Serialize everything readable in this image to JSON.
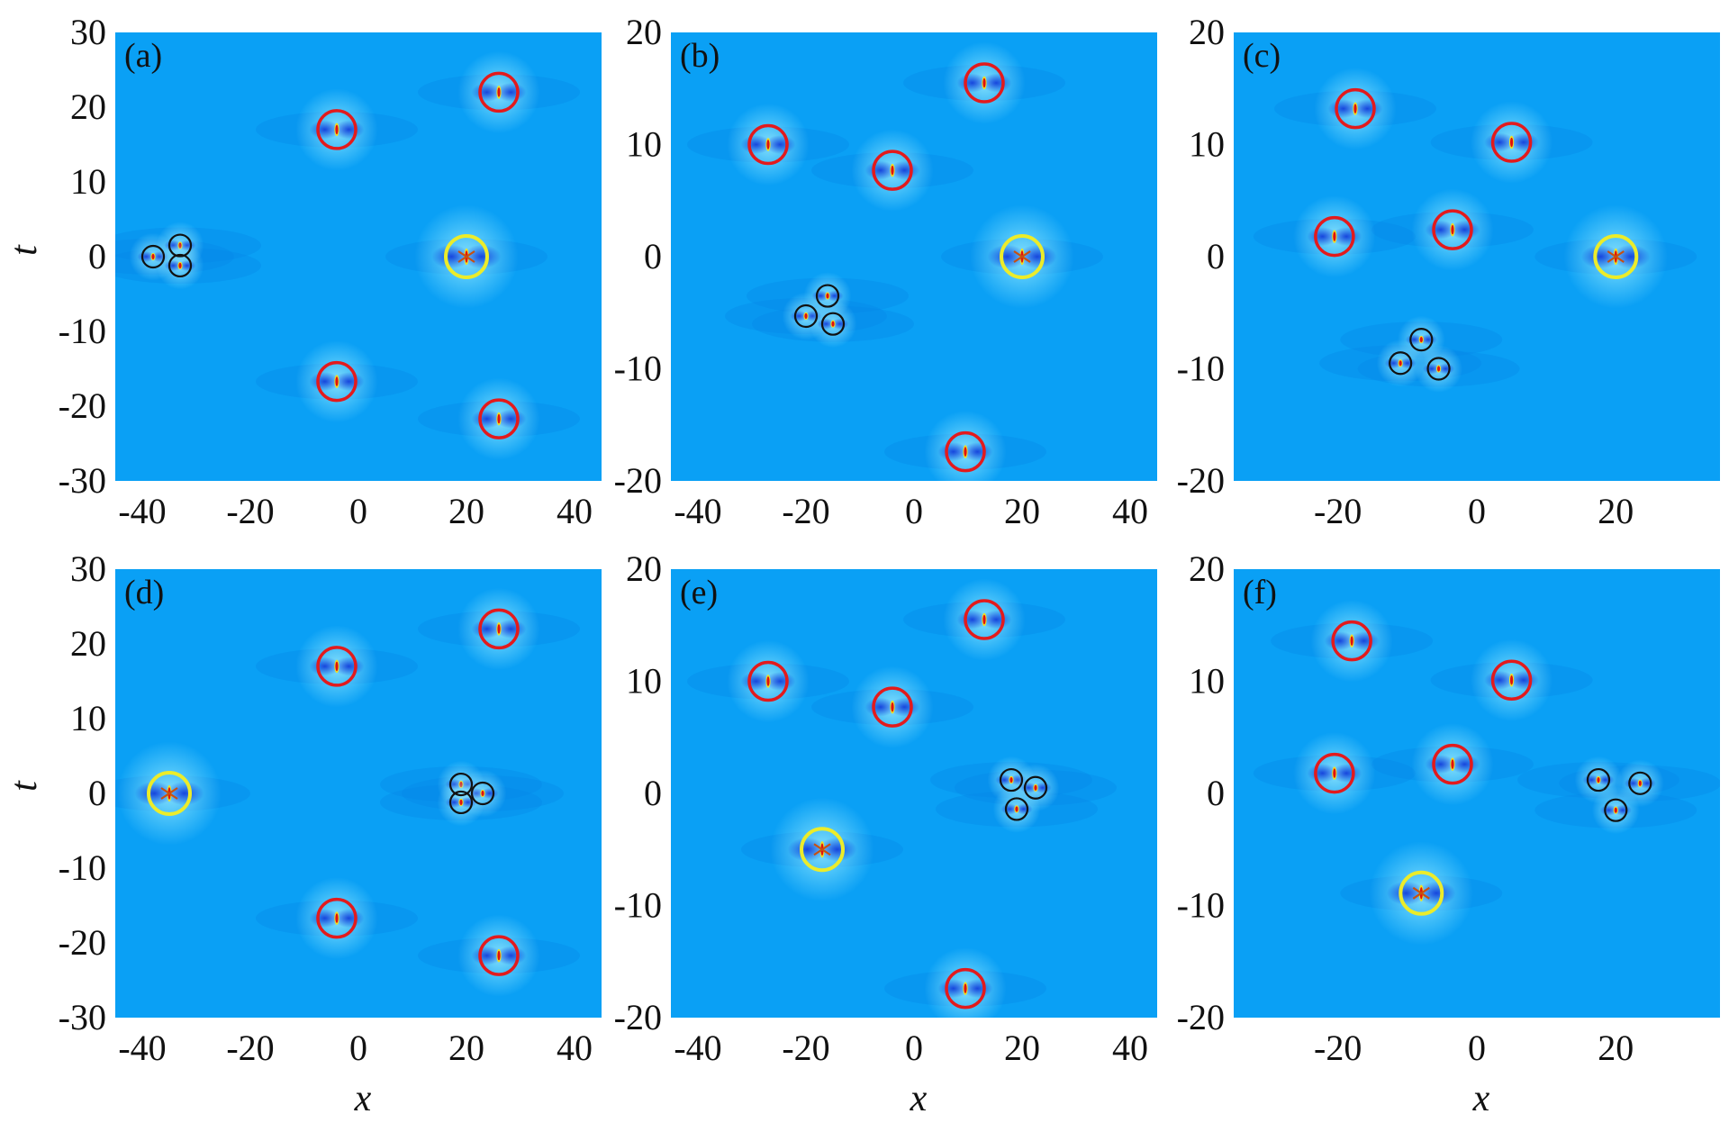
{
  "colors": {
    "background_field": "#0aa0f5",
    "dark_lobe": "#0a2fd8",
    "core_red": "#e01010",
    "core_yellow": "#f0e020",
    "marker_red": "#e31a1c",
    "marker_yellow": "#ecec2a",
    "marker_black": "#111111"
  },
  "axis_labels": {
    "x": "x",
    "t": "t"
  },
  "chart_data": [
    {
      "type": "heatmap",
      "panel": "(a)",
      "xlim": [
        -45,
        45
      ],
      "ylim": [
        -30,
        30
      ],
      "xticks": [
        -40,
        -20,
        0,
        20,
        40
      ],
      "yticks": [
        30,
        20,
        10,
        0,
        -10,
        -20,
        -30
      ],
      "grid": false,
      "red_markers": [
        [
          -4,
          17
        ],
        [
          26,
          22
        ],
        [
          -4,
          -16.7
        ],
        [
          26,
          -21.7
        ]
      ],
      "yellow_markers": [
        [
          20,
          0
        ]
      ],
      "black_markers": [
        [
          -38,
          0
        ],
        [
          -33,
          1.5
        ],
        [
          -33,
          -1.2
        ]
      ]
    },
    {
      "type": "heatmap",
      "panel": "(b)",
      "xlim": [
        -45,
        45
      ],
      "ylim": [
        -20,
        20
      ],
      "xticks": [
        -40,
        -20,
        0,
        20,
        40
      ],
      "yticks": [
        20,
        10,
        0,
        -10,
        -20
      ],
      "grid": false,
      "red_markers": [
        [
          -27,
          10
        ],
        [
          13,
          15.5
        ],
        [
          -4,
          7.7
        ],
        [
          9.5,
          -17.4
        ]
      ],
      "yellow_markers": [
        [
          20,
          0
        ]
      ],
      "black_markers": [
        [
          -16,
          -3.5
        ],
        [
          -20,
          -5.3
        ],
        [
          -15,
          -6
        ]
      ]
    },
    {
      "type": "heatmap",
      "panel": "(c)",
      "xlim": [
        -35,
        35
      ],
      "ylim": [
        -20,
        20
      ],
      "xticks": [
        -20,
        0,
        20
      ],
      "yticks": [
        20,
        10,
        0,
        -10,
        -20
      ],
      "grid": false,
      "red_markers": [
        [
          -17.5,
          13.2
        ],
        [
          5,
          10.2
        ],
        [
          -20.5,
          1.8
        ],
        [
          -3.5,
          2.4
        ]
      ],
      "yellow_markers": [
        [
          20,
          0
        ]
      ],
      "black_markers": [
        [
          -8,
          -7.4
        ],
        [
          -11,
          -9.5
        ],
        [
          -5.5,
          -10
        ]
      ]
    },
    {
      "type": "heatmap",
      "panel": "(d)",
      "xlim": [
        -45,
        45
      ],
      "ylim": [
        -30,
        30
      ],
      "xticks": [
        -40,
        -20,
        0,
        20,
        40
      ],
      "yticks": [
        30,
        20,
        10,
        0,
        -10,
        -20,
        -30
      ],
      "grid": false,
      "red_markers": [
        [
          -4,
          17
        ],
        [
          26,
          22
        ],
        [
          -4,
          -16.7
        ],
        [
          26,
          -21.7
        ]
      ],
      "yellow_markers": [
        [
          -35,
          0
        ]
      ],
      "black_markers": [
        [
          19,
          1.2
        ],
        [
          23,
          0
        ],
        [
          19,
          -1.2
        ]
      ]
    },
    {
      "type": "heatmap",
      "panel": "(e)",
      "xlim": [
        -45,
        45
      ],
      "ylim": [
        -20,
        20
      ],
      "xticks": [
        -40,
        -20,
        0,
        20,
        40
      ],
      "yticks": [
        20,
        10,
        0,
        -10,
        -20
      ],
      "grid": false,
      "red_markers": [
        [
          -27,
          10
        ],
        [
          13,
          15.5
        ],
        [
          -4,
          7.7
        ],
        [
          9.5,
          -17.4
        ]
      ],
      "yellow_markers": [
        [
          -17,
          -5
        ]
      ],
      "black_markers": [
        [
          18,
          1.2
        ],
        [
          22.5,
          0.5
        ],
        [
          19,
          -1.4
        ]
      ]
    },
    {
      "type": "heatmap",
      "panel": "(f)",
      "xlim": [
        -35,
        35
      ],
      "ylim": [
        -20,
        20
      ],
      "xticks": [
        -20,
        0,
        20
      ],
      "yticks": [
        20,
        10,
        0,
        -10,
        -20
      ],
      "grid": false,
      "red_markers": [
        [
          -18,
          13.6
        ],
        [
          5,
          10.1
        ],
        [
          -20.5,
          1.8
        ],
        [
          -3.5,
          2.6
        ]
      ],
      "yellow_markers": [
        [
          -8,
          -8.9
        ]
      ],
      "black_markers": [
        [
          17.5,
          1.2
        ],
        [
          23.5,
          0.9
        ],
        [
          20,
          -1.5
        ]
      ]
    }
  ]
}
